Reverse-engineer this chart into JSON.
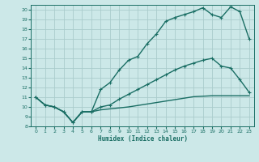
{
  "xlabel": "Humidex (Indice chaleur)",
  "bg_color": "#cce8e8",
  "line_color": "#1a6e64",
  "grid_color": "#aacccc",
  "xlim": [
    -0.5,
    23.5
  ],
  "ylim": [
    8,
    20.5
  ],
  "xticks": [
    0,
    1,
    2,
    3,
    4,
    5,
    6,
    7,
    8,
    9,
    10,
    11,
    12,
    13,
    14,
    15,
    16,
    17,
    18,
    19,
    20,
    21,
    22,
    23
  ],
  "yticks": [
    8,
    9,
    10,
    11,
    12,
    13,
    14,
    15,
    16,
    17,
    18,
    19,
    20
  ],
  "line1_x": [
    0,
    1,
    2,
    3,
    4,
    5,
    6,
    7,
    8,
    9,
    10,
    11,
    12,
    13,
    14,
    15,
    16,
    17,
    18,
    19,
    20,
    21,
    22,
    23
  ],
  "line1_y": [
    11.0,
    10.2,
    10.0,
    9.5,
    8.4,
    9.5,
    9.5,
    11.8,
    12.5,
    13.8,
    14.8,
    15.2,
    16.5,
    17.5,
    18.8,
    19.2,
    19.5,
    19.8,
    20.2,
    19.5,
    19.2,
    20.3,
    19.8,
    17.0
  ],
  "line2_x": [
    0,
    1,
    2,
    3,
    4,
    5,
    6,
    7,
    8,
    9,
    10,
    11,
    12,
    13,
    14,
    15,
    16,
    17,
    18,
    19,
    20,
    21,
    22,
    23
  ],
  "line2_y": [
    11.0,
    10.2,
    10.0,
    9.5,
    8.4,
    9.5,
    9.5,
    10.0,
    10.2,
    10.8,
    11.3,
    11.8,
    12.3,
    12.8,
    13.3,
    13.8,
    14.2,
    14.5,
    14.8,
    15.0,
    14.2,
    14.0,
    12.8,
    11.5
  ],
  "line3_x": [
    0,
    1,
    2,
    3,
    4,
    5,
    6,
    7,
    8,
    9,
    10,
    11,
    12,
    13,
    14,
    15,
    16,
    17,
    18,
    19,
    20,
    21,
    22,
    23
  ],
  "line3_y": [
    11.0,
    10.2,
    10.0,
    9.5,
    8.4,
    9.5,
    9.5,
    9.7,
    9.8,
    9.9,
    10.0,
    10.15,
    10.3,
    10.45,
    10.6,
    10.75,
    10.9,
    11.05,
    11.1,
    11.15,
    11.15,
    11.15,
    11.15,
    11.15
  ],
  "marker": "+",
  "markersize": 3.5,
  "linewidth": 1.0
}
